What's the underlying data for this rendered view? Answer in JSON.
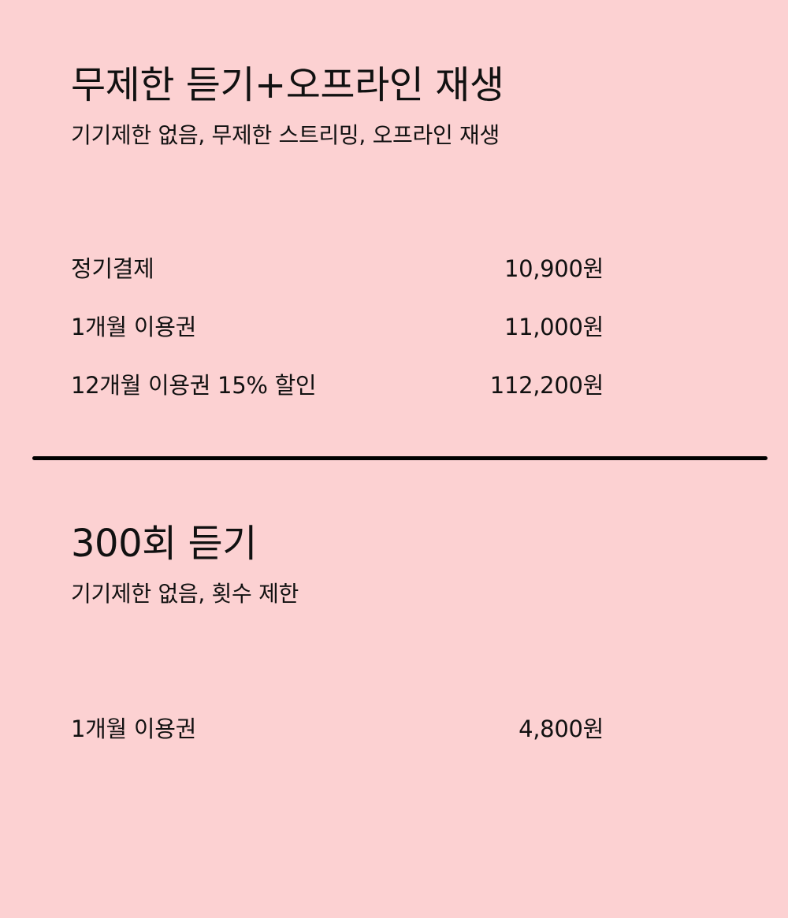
{
  "plans": [
    {
      "title": "무제한 듣기+오프라인 재생",
      "subtitle": "기기제한 없음, 무제한 스트리밍, 오프라인 재생",
      "prices": [
        {
          "label": "정기결제",
          "price": "10,900원"
        },
        {
          "label": "1개월 이용권",
          "price": "11,000원"
        },
        {
          "label": "12개월 이용권 15% 할인",
          "price": "112,200원"
        }
      ]
    },
    {
      "title": "300회 듣기",
      "subtitle": "기기제한 없음, 횟수 제한",
      "prices": [
        {
          "label": "1개월 이용권",
          "price": "4,800원"
        }
      ]
    }
  ],
  "colors": {
    "background": "#fcd1d2",
    "text": "#111111",
    "divider": "#000000"
  }
}
